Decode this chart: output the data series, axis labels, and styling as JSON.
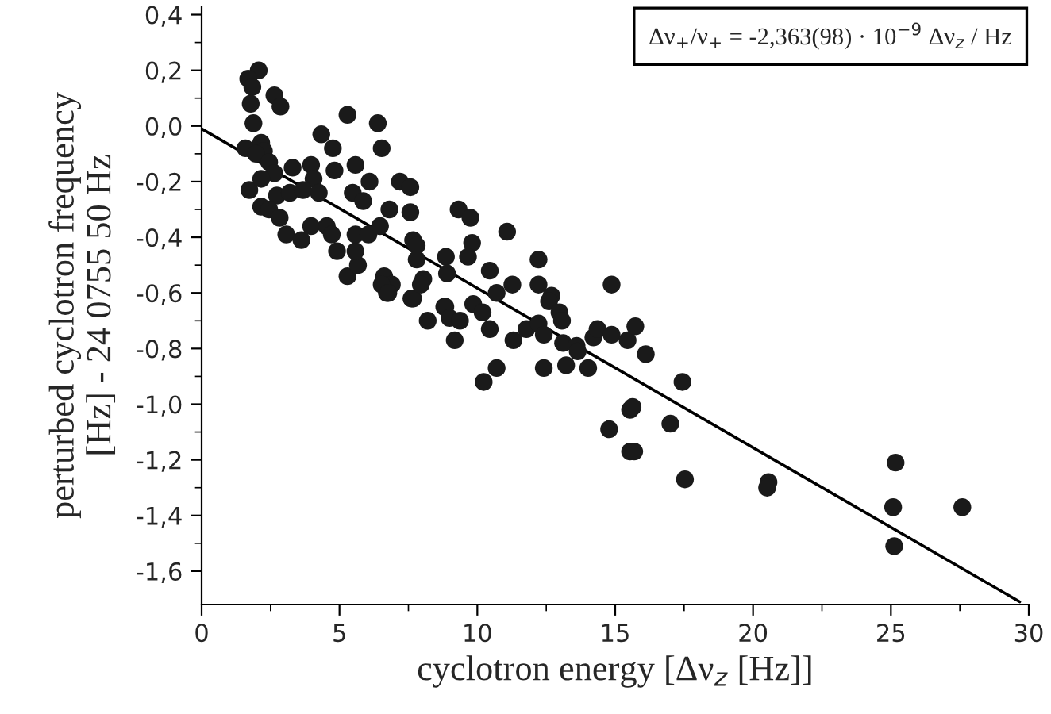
{
  "chart_data": {
    "type": "scatter",
    "xlabel": "cyclotron energy [Δν$_{z}$ [Hz]]",
    "ylabel": "perturbed cyclotron frequency\n[Hz] - 24 0755 50 Hz",
    "annotations": [
      "Δν$_{+}$/ν$_{+}$ = -2,363(98) · 10$^{−9}$ Δν$_{z}$ / Hz"
    ],
    "xlim": [
      0,
      30
    ],
    "xticks": [
      0,
      5,
      10,
      15,
      20,
      25,
      30
    ],
    "ylim": [
      -1.72,
      0.43
    ],
    "yticks": [
      {
        "value": 0.4,
        "label": "0,4"
      },
      {
        "value": 0.2,
        "label": "0,2"
      },
      {
        "value": 0.0,
        "label": "0,0"
      },
      {
        "value": -0.2,
        "label": "-0,2"
      },
      {
        "value": -0.4,
        "label": "-0,4"
      },
      {
        "value": -0.6,
        "label": "-0,6"
      },
      {
        "value": -0.8,
        "label": "-0,8"
      },
      {
        "value": -1.0,
        "label": "-1,0"
      },
      {
        "value": -1.2,
        "label": "-1,2"
      },
      {
        "value": -1.4,
        "label": "-1,4"
      },
      {
        "value": -1.6,
        "label": "-1,6"
      }
    ],
    "grid": false,
    "legend": false,
    "marker": "circle",
    "series": [
      {
        "color": "#1a1a1a",
        "x": [
          2.07,
          1.69,
          1.84,
          2.64,
          2.86,
          1.78,
          1.88,
          1.59,
          2.16,
          2.26,
          1.97,
          2.45,
          2.64,
          3.3,
          3.97,
          4.06,
          1.73,
          2.16,
          2.73,
          3.2,
          3.68,
          4.25,
          2.16,
          2.45,
          2.83,
          3.07,
          3.62,
          3.97,
          4.54,
          4.72,
          4.91,
          5.29,
          5.67,
          5.58,
          5.58,
          6.05,
          5.29,
          4.34,
          4.76,
          4.82,
          5.58,
          6.09,
          6.39,
          6.53,
          5.48,
          5.86,
          6.47,
          7.19,
          7.57,
          6.81,
          7.57,
          7.67,
          7.8,
          7.8,
          6.62,
          6.9,
          6.72,
          7.67,
          8.04,
          9.32,
          9.75,
          9.81,
          9.66,
          8.86,
          8.9,
          10.45,
          11.08,
          10.7,
          11.27,
          12.22,
          12.22,
          12.69,
          14.87,
          9.85,
          8.8,
          6.53,
          6.77,
          7.61,
          7.95,
          8.2,
          8.84,
          8.99,
          9.37,
          9.18,
          10.19,
          10.45,
          10.23,
          10.7,
          11.31,
          11.78,
          12.22,
          12.41,
          12.41,
          12.6,
          12.98,
          13.07,
          13.11,
          13.22,
          13.6,
          13.64,
          14.02,
          14.21,
          14.36,
          14.87,
          14.78,
          15.45,
          15.54,
          15.54,
          15.73,
          16.11,
          17.44,
          15.63,
          15.69,
          17.0,
          17.53,
          20.56,
          20.51,
          25.17,
          25.08,
          25.12,
          27.59
        ],
        "values": [
          0.2,
          0.17,
          0.14,
          0.11,
          0.07,
          0.08,
          0.01,
          -0.08,
          -0.06,
          -0.09,
          -0.1,
          -0.13,
          -0.17,
          -0.15,
          -0.14,
          -0.19,
          -0.23,
          -0.19,
          -0.25,
          -0.24,
          -0.23,
          -0.24,
          -0.29,
          -0.3,
          -0.33,
          -0.39,
          -0.41,
          -0.36,
          -0.36,
          -0.39,
          -0.45,
          -0.54,
          -0.5,
          -0.45,
          -0.39,
          -0.39,
          0.04,
          -0.03,
          -0.08,
          -0.16,
          -0.14,
          -0.2,
          0.01,
          -0.08,
          -0.24,
          -0.27,
          -0.36,
          -0.2,
          -0.22,
          -0.3,
          -0.31,
          -0.41,
          -0.43,
          -0.48,
          -0.54,
          -0.57,
          -0.6,
          -0.62,
          -0.55,
          -0.3,
          -0.33,
          -0.42,
          -0.47,
          -0.47,
          -0.53,
          -0.52,
          -0.38,
          -0.6,
          -0.57,
          -0.48,
          -0.57,
          -0.61,
          -0.57,
          -0.64,
          -0.65,
          -0.57,
          -0.6,
          -0.62,
          -0.57,
          -0.7,
          -0.65,
          -0.69,
          -0.7,
          -0.77,
          -0.67,
          -0.73,
          -0.92,
          -0.87,
          -0.77,
          -0.73,
          -0.71,
          -0.75,
          -0.87,
          -0.63,
          -0.67,
          -0.7,
          -0.78,
          -0.86,
          -0.79,
          -0.81,
          -0.87,
          -0.76,
          -0.73,
          -0.75,
          -1.09,
          -0.77,
          -1.02,
          -1.17,
          -0.72,
          -0.82,
          -0.92,
          -1.01,
          -1.17,
          -1.07,
          -1.27,
          -1.28,
          -1.3,
          -1.21,
          -1.37,
          -1.51,
          -1.37
        ]
      },
      {
        "type": "line",
        "color": "#000000",
        "marker": "none",
        "line_style": "solid",
        "x": [
          0,
          29.67
        ],
        "values": [
          -0.01,
          -1.71
        ]
      }
    ]
  }
}
